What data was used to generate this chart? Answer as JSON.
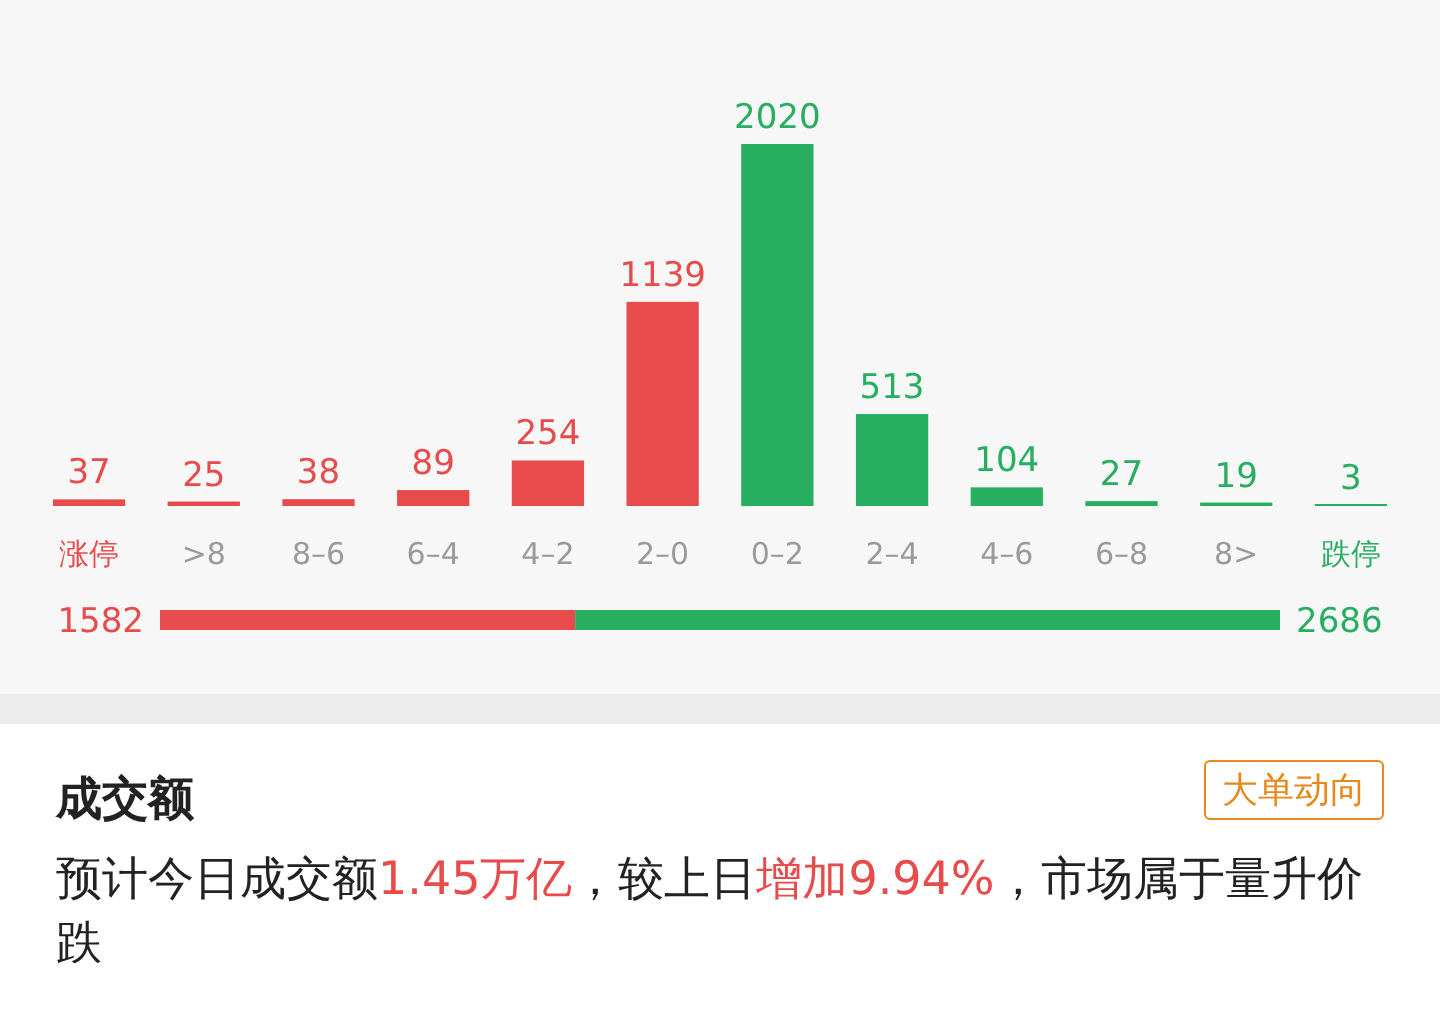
{
  "chart_data": [
    {
      "type": "bar",
      "categories": [
        "涨停",
        ">8",
        "8–6",
        "6–4",
        "4–2",
        "2–0",
        "0–2",
        "2–4",
        "4–6",
        "6–8",
        "8>",
        "跌停"
      ],
      "values": [
        37,
        25,
        38,
        89,
        254,
        1139,
        2020,
        513,
        104,
        27,
        19,
        3
      ],
      "colors": [
        "#e84b4b",
        "#e84b4b",
        "#e84b4b",
        "#e84b4b",
        "#e84b4b",
        "#e84b4b",
        "#27ae60",
        "#27ae60",
        "#27ae60",
        "#27ae60",
        "#27ae60",
        "#27ae60"
      ],
      "data_labels": true
    },
    {
      "type": "bar",
      "orientation": "horizontal",
      "stacked": true,
      "categories": [
        null
      ],
      "series": [
        {
          "color": "#e84b4b",
          "values": [
            1582
          ]
        },
        {
          "color": "#27ae60",
          "values": [
            2686
          ]
        }
      ],
      "data_labels": true
    },
    {
      "type": "other",
      "title": "成交额",
      "annotations": [
        "大单动向",
        "预计今日成交额",
        "1.45万亿",
        "，较上日",
        "增加9.94%",
        "，市场属于量升价跌"
      ]
    }
  ]
}
